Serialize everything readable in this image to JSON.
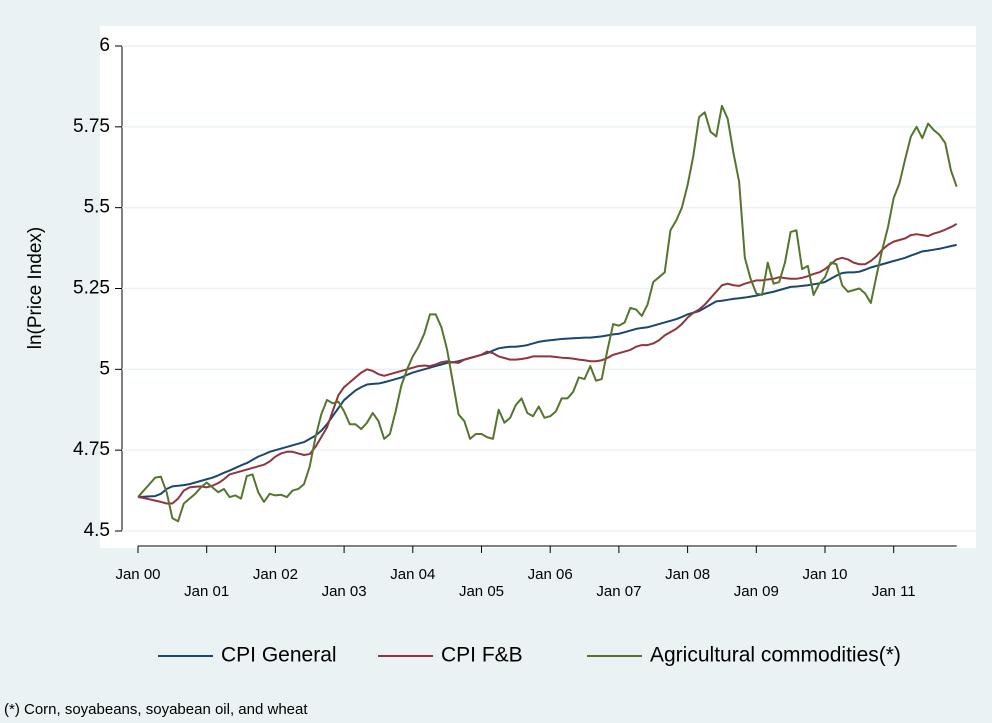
{
  "chart_data": {
    "type": "line",
    "y_label": "ln(Price Index)",
    "footnote": "(*) Corn, soyabeans, soyabean oil, and wheat",
    "x": [
      "2000-01",
      "2000-02",
      "2000-03",
      "2000-04",
      "2000-05",
      "2000-06",
      "2000-07",
      "2000-08",
      "2000-09",
      "2000-10",
      "2000-11",
      "2000-12",
      "2001-01",
      "2001-02",
      "2001-03",
      "2001-04",
      "2001-05",
      "2001-06",
      "2001-07",
      "2001-08",
      "2001-09",
      "2001-10",
      "2001-11",
      "2001-12",
      "2002-01",
      "2002-02",
      "2002-03",
      "2002-04",
      "2002-05",
      "2002-06",
      "2002-07",
      "2002-08",
      "2002-09",
      "2002-10",
      "2002-11",
      "2002-12",
      "2003-01",
      "2003-02",
      "2003-03",
      "2003-04",
      "2003-05",
      "2003-06",
      "2003-07",
      "2003-08",
      "2003-09",
      "2003-10",
      "2003-11",
      "2003-12",
      "2004-01",
      "2004-02",
      "2004-03",
      "2004-04",
      "2004-05",
      "2004-06",
      "2004-07",
      "2004-08",
      "2004-09",
      "2004-10",
      "2004-11",
      "2004-12",
      "2005-01",
      "2005-02",
      "2005-03",
      "2005-04",
      "2005-05",
      "2005-06",
      "2005-07",
      "2005-08",
      "2005-09",
      "2005-10",
      "2005-11",
      "2005-12",
      "2006-01",
      "2006-02",
      "2006-03",
      "2006-04",
      "2006-05",
      "2006-06",
      "2006-07",
      "2006-08",
      "2006-09",
      "2006-10",
      "2006-11",
      "2006-12",
      "2007-01",
      "2007-02",
      "2007-03",
      "2007-04",
      "2007-05",
      "2007-06",
      "2007-07",
      "2007-08",
      "2007-09",
      "2007-10",
      "2007-11",
      "2007-12",
      "2008-01",
      "2008-02",
      "2008-03",
      "2008-04",
      "2008-05",
      "2008-06",
      "2008-07",
      "2008-08",
      "2008-09",
      "2008-10",
      "2008-11",
      "2008-12",
      "2009-01",
      "2009-02",
      "2009-03",
      "2009-04",
      "2009-05",
      "2009-06",
      "2009-07",
      "2009-08",
      "2009-09",
      "2009-10",
      "2009-11",
      "2009-12",
      "2010-01",
      "2010-02",
      "2010-03",
      "2010-04",
      "2010-05",
      "2010-06",
      "2010-07",
      "2010-08",
      "2010-09",
      "2010-10",
      "2010-11",
      "2010-12",
      "2011-01",
      "2011-02",
      "2011-03",
      "2011-04",
      "2011-05",
      "2011-06",
      "2011-07",
      "2011-08",
      "2011-09",
      "2011-10",
      "2011-11",
      "2011-12"
    ],
    "xticks": [
      {
        "value": "2000-01",
        "label": "Jan 00"
      },
      {
        "value": "2001-01",
        "label": "Jan 01"
      },
      {
        "value": "2002-01",
        "label": "Jan 02"
      },
      {
        "value": "2003-01",
        "label": "Jan 03"
      },
      {
        "value": "2004-01",
        "label": "Jan 04"
      },
      {
        "value": "2005-01",
        "label": "Jan 05"
      },
      {
        "value": "2006-01",
        "label": "Jan 06"
      },
      {
        "value": "2007-01",
        "label": "Jan 07"
      },
      {
        "value": "2008-01",
        "label": "Jan 08"
      },
      {
        "value": "2009-01",
        "label": "Jan 09"
      },
      {
        "value": "2010-01",
        "label": "Jan 10"
      },
      {
        "value": "2011-01",
        "label": "Jan 11"
      }
    ],
    "ylim": [
      4.5,
      6
    ],
    "yticks": [
      4.5,
      4.75,
      5,
      5.25,
      5.5,
      5.75,
      6
    ],
    "grid": true,
    "series": [
      {
        "name": "CPI General",
        "color": "#1a476f",
        "values": [
          4.605,
          4.606,
          4.607,
          4.608,
          4.615,
          4.63,
          4.638,
          4.64,
          4.642,
          4.645,
          4.65,
          4.655,
          4.66,
          4.665,
          4.672,
          4.68,
          4.687,
          4.695,
          4.703,
          4.71,
          4.72,
          4.73,
          4.737,
          4.745,
          4.75,
          4.755,
          4.76,
          4.765,
          4.77,
          4.775,
          4.785,
          4.795,
          4.81,
          4.83,
          4.855,
          4.88,
          4.905,
          4.92,
          4.935,
          4.945,
          4.953,
          4.955,
          4.956,
          4.96,
          4.965,
          4.97,
          4.975,
          4.983,
          4.99,
          4.995,
          5.0,
          5.005,
          5.01,
          5.015,
          5.02,
          5.022,
          5.025,
          5.03,
          5.035,
          5.04,
          5.045,
          5.05,
          5.058,
          5.065,
          5.068,
          5.07,
          5.07,
          5.072,
          5.075,
          5.08,
          5.085,
          5.088,
          5.09,
          5.092,
          5.094,
          5.095,
          5.096,
          5.097,
          5.098,
          5.098,
          5.1,
          5.102,
          5.105,
          5.108,
          5.11,
          5.115,
          5.12,
          5.125,
          5.128,
          5.13,
          5.135,
          5.14,
          5.145,
          5.15,
          5.155,
          5.162,
          5.17,
          5.175,
          5.18,
          5.19,
          5.2,
          5.21,
          5.212,
          5.215,
          5.218,
          5.22,
          5.222,
          5.225,
          5.228,
          5.232,
          5.236,
          5.24,
          5.245,
          5.25,
          5.255,
          5.256,
          5.258,
          5.26,
          5.263,
          5.266,
          5.27,
          5.28,
          5.29,
          5.298,
          5.3,
          5.3,
          5.302,
          5.308,
          5.315,
          5.32,
          5.325,
          5.33,
          5.335,
          5.34,
          5.345,
          5.352,
          5.358,
          5.365,
          5.367,
          5.37,
          5.373,
          5.377,
          5.381,
          5.385
        ]
      },
      {
        "name": "CPI F&B",
        "color": "#90353b",
        "values": [
          4.605,
          4.602,
          4.598,
          4.594,
          4.59,
          4.585,
          4.585,
          4.6,
          4.625,
          4.635,
          4.637,
          4.638,
          4.635,
          4.64,
          4.648,
          4.66,
          4.675,
          4.68,
          4.685,
          4.69,
          4.695,
          4.7,
          4.705,
          4.715,
          4.73,
          4.74,
          4.745,
          4.745,
          4.74,
          4.735,
          4.738,
          4.76,
          4.79,
          4.82,
          4.87,
          4.92,
          4.945,
          4.96,
          4.975,
          4.99,
          5.0,
          4.995,
          4.985,
          4.98,
          4.985,
          4.99,
          4.995,
          5.0,
          5.005,
          5.01,
          5.012,
          5.01,
          5.015,
          5.022,
          5.025,
          5.022,
          5.02,
          5.03,
          5.035,
          5.04,
          5.045,
          5.055,
          5.05,
          5.04,
          5.035,
          5.03,
          5.03,
          5.032,
          5.035,
          5.04,
          5.04,
          5.04,
          5.04,
          5.038,
          5.036,
          5.035,
          5.033,
          5.03,
          5.028,
          5.025,
          5.025,
          5.028,
          5.035,
          5.045,
          5.05,
          5.055,
          5.06,
          5.07,
          5.075,
          5.075,
          5.08,
          5.09,
          5.105,
          5.115,
          5.125,
          5.14,
          5.16,
          5.175,
          5.185,
          5.2,
          5.22,
          5.24,
          5.26,
          5.265,
          5.26,
          5.258,
          5.265,
          5.27,
          5.275,
          5.275,
          5.278,
          5.28,
          5.285,
          5.282,
          5.28,
          5.28,
          5.283,
          5.288,
          5.295,
          5.3,
          5.31,
          5.325,
          5.34,
          5.345,
          5.34,
          5.33,
          5.325,
          5.325,
          5.335,
          5.35,
          5.37,
          5.385,
          5.395,
          5.4,
          5.405,
          5.415,
          5.418,
          5.415,
          5.412,
          5.42,
          5.425,
          5.432,
          5.44,
          5.45
        ]
      },
      {
        "name": "Agricultural commodities(*)",
        "color": "#55752f",
        "values": [
          4.605,
          4.625,
          4.645,
          4.665,
          4.668,
          4.62,
          4.54,
          4.53,
          4.585,
          4.6,
          4.615,
          4.635,
          4.65,
          4.635,
          4.62,
          4.63,
          4.605,
          4.61,
          4.6,
          4.67,
          4.675,
          4.62,
          4.59,
          4.615,
          4.61,
          4.612,
          4.605,
          4.625,
          4.63,
          4.645,
          4.7,
          4.79,
          4.86,
          4.905,
          4.895,
          4.9,
          4.87,
          4.83,
          4.83,
          4.815,
          4.835,
          4.865,
          4.84,
          4.785,
          4.8,
          4.87,
          4.95,
          5.0,
          5.04,
          5.07,
          5.11,
          5.17,
          5.17,
          5.13,
          5.06,
          4.96,
          4.86,
          4.84,
          4.785,
          4.8,
          4.8,
          4.79,
          4.785,
          4.875,
          4.835,
          4.85,
          4.89,
          4.91,
          4.865,
          4.855,
          4.885,
          4.85,
          4.855,
          4.87,
          4.91,
          4.91,
          4.93,
          4.975,
          4.97,
          5.01,
          4.965,
          4.97,
          5.06,
          5.14,
          5.135,
          5.145,
          5.19,
          5.185,
          5.165,
          5.2,
          5.27,
          5.285,
          5.3,
          5.43,
          5.46,
          5.5,
          5.57,
          5.66,
          5.78,
          5.795,
          5.735,
          5.72,
          5.815,
          5.775,
          5.67,
          5.58,
          5.345,
          5.28,
          5.235,
          5.23,
          5.33,
          5.265,
          5.27,
          5.33,
          5.425,
          5.43,
          5.31,
          5.32,
          5.23,
          5.265,
          5.285,
          5.33,
          5.325,
          5.26,
          5.24,
          5.245,
          5.25,
          5.235,
          5.205,
          5.29,
          5.37,
          5.44,
          5.53,
          5.575,
          5.65,
          5.72,
          5.75,
          5.715,
          5.76,
          5.74,
          5.725,
          5.7,
          5.615,
          5.565
        ]
      }
    ]
  }
}
